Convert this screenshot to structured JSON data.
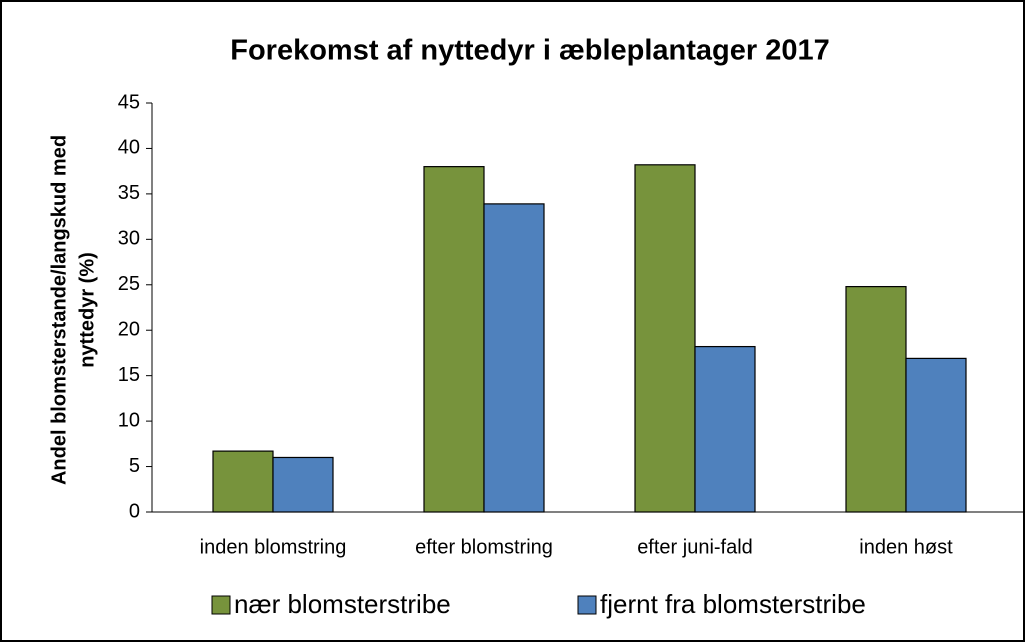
{
  "chart_data": {
    "type": "bar",
    "title": "Forekomst af nyttedyr i æbleplantager 2017",
    "ylabel": [
      "Andel blomsterstande/langskud med",
      "nyttedyr (%)"
    ],
    "categories": [
      "inden blomstring",
      "efter blomstring",
      "efter juni-fald",
      "inden høst"
    ],
    "series": [
      {
        "name": "nær blomsterstribe",
        "color": "#77933c",
        "values": [
          6.7,
          38.0,
          38.2,
          24.8
        ]
      },
      {
        "name": "fjernt fra blomsterstribe",
        "color": "#4f81bd",
        "values": [
          6.0,
          33.9,
          18.2,
          16.9
        ]
      }
    ],
    "ylim": [
      0,
      45
    ],
    "yticks": [
      0,
      5,
      10,
      15,
      20,
      25,
      30,
      35,
      40,
      45
    ],
    "grid": false,
    "legend": "bottom"
  }
}
